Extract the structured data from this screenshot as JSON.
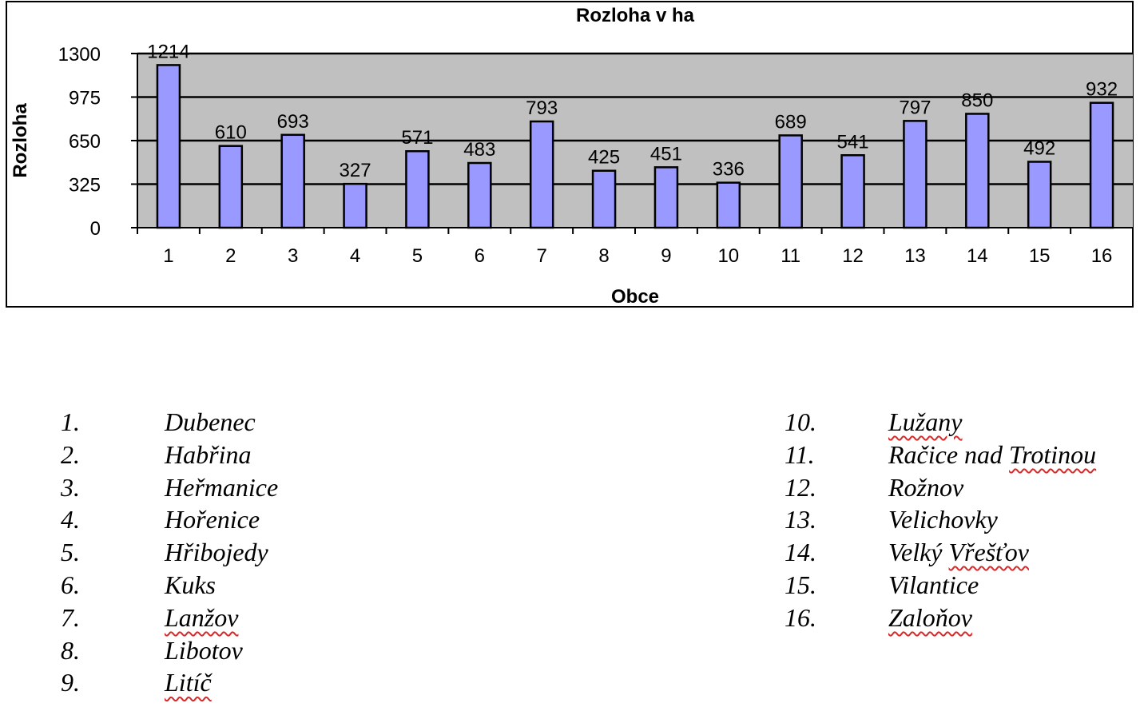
{
  "chart_data": {
    "type": "bar",
    "title": "Rozloha v ha",
    "xlabel": "Obce",
    "ylabel": "Rozloha",
    "categories": [
      "1",
      "2",
      "3",
      "4",
      "5",
      "6",
      "7",
      "8",
      "9",
      "10",
      "11",
      "12",
      "13",
      "14",
      "15",
      "16"
    ],
    "values": [
      1214,
      610,
      693,
      327,
      571,
      483,
      793,
      425,
      451,
      336,
      689,
      541,
      797,
      850,
      492,
      932
    ],
    "ylim": [
      0,
      1300
    ],
    "yticks": [
      "0",
      "325",
      "650",
      "975",
      "1300"
    ],
    "grid": true,
    "colors": {
      "bar": "#9999ff",
      "plot_bg": "#c0c0c0",
      "frame": "#000000"
    }
  },
  "legend": {
    "left": [
      {
        "num": "1.",
        "name": "Dubenec",
        "flag": false
      },
      {
        "num": "2.",
        "name": "Habřina",
        "flag": false
      },
      {
        "num": "3.",
        "name": "Heřmanice",
        "flag": false
      },
      {
        "num": "4.",
        "name": "Hořenice",
        "flag": false
      },
      {
        "num": "5.",
        "name": "Hřibojedy",
        "flag": false
      },
      {
        "num": "6.",
        "name": "Kuks",
        "flag": false
      },
      {
        "num": "7.",
        "name": "Lanžov",
        "flag": true
      },
      {
        "num": "8.",
        "name": "Libotov",
        "flag": false
      },
      {
        "num": "9.",
        "name": "Litíč",
        "flag": true
      }
    ],
    "right": [
      {
        "num": "10.",
        "name": "Lužany",
        "flag": true
      },
      {
        "num": "11.",
        "name": "Račice nad Trotinou",
        "flag": false,
        "flag_part": "Trotinou"
      },
      {
        "num": "12.",
        "name": "Rožnov",
        "flag": false
      },
      {
        "num": "13.",
        "name": "Velichovky",
        "flag": false
      },
      {
        "num": "14.",
        "name": "Velký Vřešťov",
        "flag": false,
        "flag_part": "Vřešťov"
      },
      {
        "num": "15.",
        "name": "Vilantice",
        "flag": false
      },
      {
        "num": "16.",
        "name": "Zaloňov",
        "flag": true
      }
    ]
  }
}
